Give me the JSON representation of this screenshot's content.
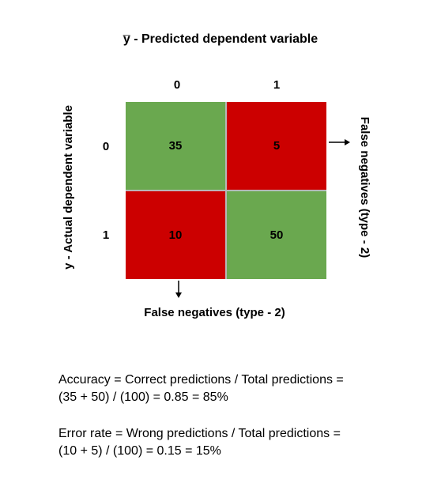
{
  "diagram": {
    "top_label": "y̅ - Predicted dependent variable",
    "left_label": "y - Actual dependent variable",
    "column_headers": [
      "0",
      "1"
    ],
    "row_headers": [
      "0",
      "1"
    ],
    "cells": [
      {
        "value": "35",
        "color": "#6aa84f"
      },
      {
        "value": "5",
        "color": "#cc0000"
      },
      {
        "value": "10",
        "color": "#cc0000"
      },
      {
        "value": "50",
        "color": "#6aa84f"
      }
    ],
    "right_arrow_label": "False negatives (type - 2)",
    "bottom_arrow_label": "False negatives (type - 2)",
    "grid_line_color": "#b7b7b7"
  },
  "formulas": {
    "accuracy_line1": "Accuracy = Correct predictions / Total predictions =",
    "accuracy_line2": "(35 + 50) / (100) = 0.85 = 85%",
    "error_line1": "Error rate = Wrong predictions / Total predictions =",
    "error_line2": "(10 + 5) / (100) = 0.15 = 15%"
  }
}
